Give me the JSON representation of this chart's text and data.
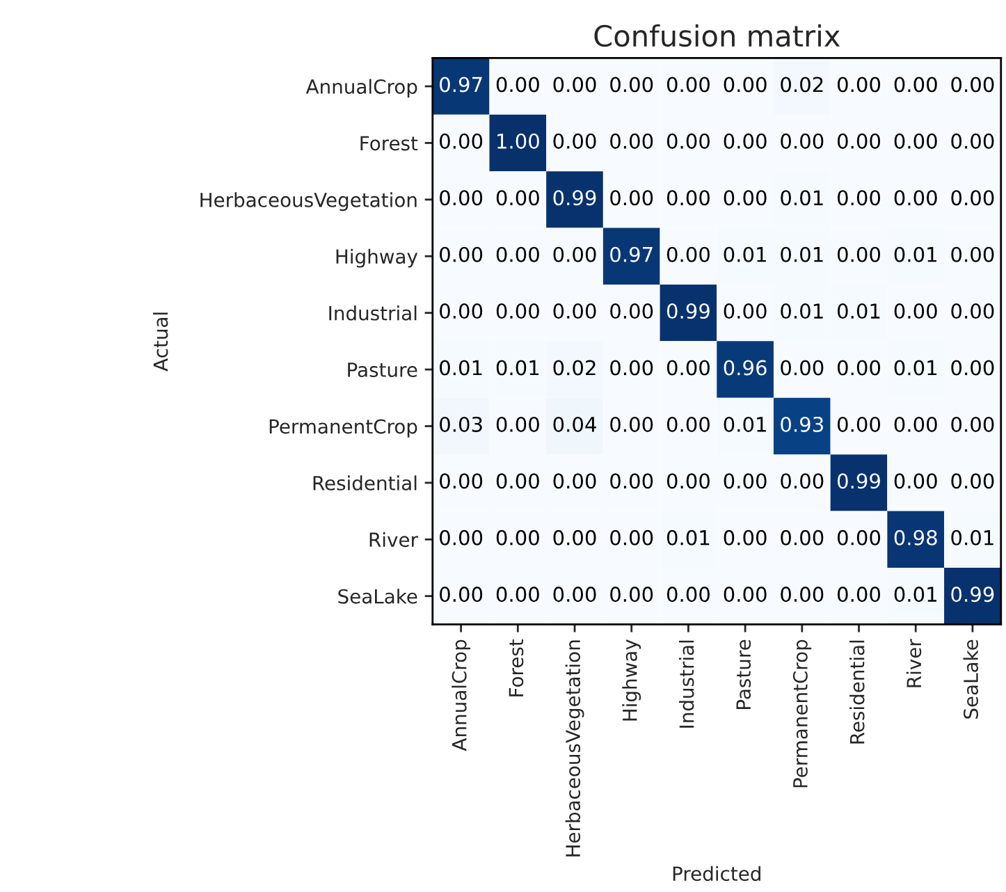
{
  "chart_data": {
    "type": "heatmap",
    "title": "Confusion matrix",
    "xlabel": "Predicted",
    "ylabel": "Actual",
    "categories": [
      "AnnualCrop",
      "Forest",
      "HerbaceousVegetation",
      "Highway",
      "Industrial",
      "Pasture",
      "PermanentCrop",
      "Residential",
      "River",
      "SeaLake"
    ],
    "y_categories": [
      "AnnualCrop",
      "Forest",
      "HerbaceousVegetation",
      "Highway",
      "Industrial",
      "Pasture",
      "PermanentCrop",
      "Residential",
      "River",
      "SeaLake"
    ],
    "cells": [
      [
        0.97,
        0.0,
        0.0,
        0.0,
        0.0,
        0.0,
        0.02,
        0.0,
        0.0,
        0.0
      ],
      [
        0.0,
        1.0,
        0.0,
        0.0,
        0.0,
        0.0,
        0.0,
        0.0,
        0.0,
        0.0
      ],
      [
        0.0,
        0.0,
        0.99,
        0.0,
        0.0,
        0.0,
        0.01,
        0.0,
        0.0,
        0.0
      ],
      [
        0.0,
        0.0,
        0.0,
        0.97,
        0.0,
        0.01,
        0.01,
        0.0,
        0.01,
        0.0
      ],
      [
        0.0,
        0.0,
        0.0,
        0.0,
        0.99,
        0.0,
        0.01,
        0.01,
        0.0,
        0.0
      ],
      [
        0.01,
        0.01,
        0.02,
        0.0,
        0.0,
        0.96,
        0.0,
        0.0,
        0.01,
        0.0
      ],
      [
        0.03,
        0.0,
        0.04,
        0.0,
        0.0,
        0.01,
        0.93,
        0.0,
        0.0,
        0.0
      ],
      [
        0.0,
        0.0,
        0.0,
        0.0,
        0.0,
        0.0,
        0.0,
        0.99,
        0.0,
        0.0
      ],
      [
        0.0,
        0.0,
        0.0,
        0.0,
        0.01,
        0.0,
        0.0,
        0.0,
        0.98,
        0.01
      ],
      [
        0.0,
        0.0,
        0.0,
        0.0,
        0.0,
        0.0,
        0.0,
        0.0,
        0.01,
        0.99
      ]
    ],
    "cell_labels": [
      [
        "0.97",
        "0.00",
        "0.00",
        "0.00",
        "0.00",
        "0.00",
        "0.02",
        "0.00",
        "0.00",
        "0.00"
      ],
      [
        "0.00",
        "1.00",
        "0.00",
        "0.00",
        "0.00",
        "0.00",
        "0.00",
        "0.00",
        "0.00",
        "0.00"
      ],
      [
        "0.00",
        "0.00",
        "0.99",
        "0.00",
        "0.00",
        "0.00",
        "0.01",
        "0.00",
        "0.00",
        "0.00"
      ],
      [
        "0.00",
        "0.00",
        "0.00",
        "0.97",
        "0.00",
        "0.01",
        "0.01",
        "0.00",
        "0.01",
        "0.00"
      ],
      [
        "0.00",
        "0.00",
        "0.00",
        "0.00",
        "0.99",
        "0.00",
        "0.01",
        "0.01",
        "0.00",
        "0.00"
      ],
      [
        "0.01",
        "0.01",
        "0.02",
        "0.00",
        "0.00",
        "0.96",
        "0.00",
        "0.00",
        "0.01",
        "0.00"
      ],
      [
        "0.03",
        "0.00",
        "0.04",
        "0.00",
        "0.00",
        "0.01",
        "0.93",
        "0.00",
        "0.00",
        "0.00"
      ],
      [
        "0.00",
        "0.00",
        "0.00",
        "0.00",
        "0.00",
        "0.00",
        "0.00",
        "0.99",
        "0.00",
        "0.00"
      ],
      [
        "0.00",
        "0.00",
        "0.00",
        "0.00",
        "0.01",
        "0.00",
        "0.00",
        "0.00",
        "0.98",
        "0.01"
      ],
      [
        "0.00",
        "0.00",
        "0.00",
        "0.00",
        "0.00",
        "0.00",
        "0.00",
        "0.00",
        "0.01",
        "0.99"
      ]
    ],
    "grid": false
  }
}
